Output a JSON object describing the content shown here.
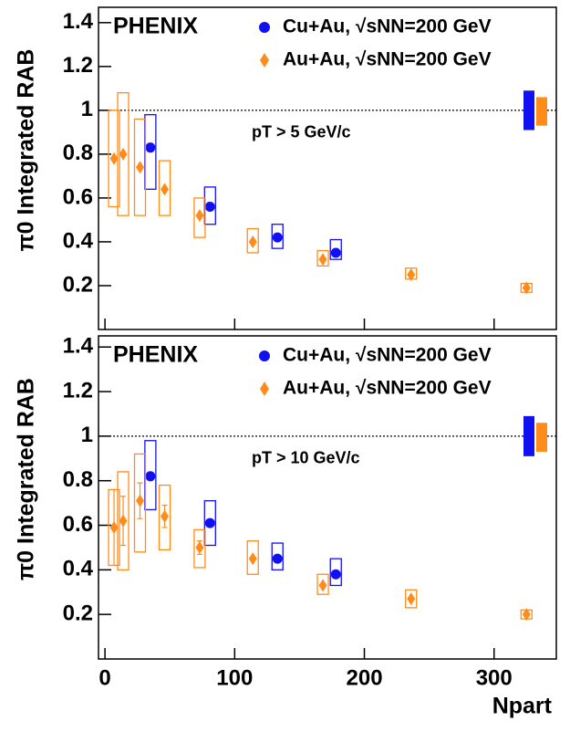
{
  "chart_data": [
    {
      "type": "scatter",
      "experiment": "PHENIX",
      "annotation": "pT > 5 GeV/c",
      "y_label": "π0 Integrated RAB",
      "xlim": [
        -5,
        348
      ],
      "xticks": [
        0,
        100,
        200,
        300
      ],
      "ylim": [
        0,
        1.47
      ],
      "yticks": [
        0.2,
        0.4,
        0.6,
        0.8,
        1,
        1.2,
        1.4
      ],
      "reference_line": 1,
      "series": [
        {
          "name": "Cu+Au, √sNN=200 GeV",
          "color": "#1010f0",
          "marker": "circle",
          "x": [
            35,
            81,
            133,
            178
          ],
          "values": [
            0.83,
            0.56,
            0.42,
            0.35
          ],
          "box_low": [
            0.64,
            0.48,
            0.37,
            0.32
          ],
          "box_high": [
            0.98,
            0.65,
            0.48,
            0.41
          ],
          "norm": [
            0.91,
            1.09
          ]
        },
        {
          "name": "Au+Au, √sNN=200 GeV",
          "color": "#ff8c1a",
          "marker": "diamond",
          "x": [
            7,
            14,
            27,
            46,
            73,
            114,
            168,
            236,
            325
          ],
          "values": [
            0.78,
            0.8,
            0.74,
            0.64,
            0.52,
            0.4,
            0.32,
            0.25,
            0.19
          ],
          "box_low": [
            0.56,
            0.52,
            0.52,
            0.52,
            0.42,
            0.35,
            0.29,
            0.23,
            0.17
          ],
          "box_high": [
            1.0,
            1.08,
            0.96,
            0.77,
            0.6,
            0.46,
            0.36,
            0.28,
            0.21
          ],
          "norm": [
            0.93,
            1.06
          ]
        }
      ]
    },
    {
      "type": "scatter",
      "experiment": "PHENIX",
      "annotation": "pT > 10 GeV/c",
      "y_label": "π0 Integrated RAB",
      "x_label": "Npart",
      "xlim": [
        -5,
        348
      ],
      "xticks": [
        0,
        100,
        200,
        300
      ],
      "ylim": [
        0,
        1.45
      ],
      "yticks": [
        0.2,
        0.4,
        0.6,
        0.8,
        1,
        1.2,
        1.4
      ],
      "reference_line": 1,
      "series": [
        {
          "name": "Cu+Au, √sNN=200 GeV",
          "color": "#1010f0",
          "marker": "circle",
          "x": [
            35,
            81,
            133,
            178
          ],
          "values": [
            0.82,
            0.61,
            0.45,
            0.38
          ],
          "box_low": [
            0.67,
            0.51,
            0.4,
            0.33
          ],
          "box_high": [
            0.98,
            0.71,
            0.52,
            0.45
          ],
          "norm": [
            0.91,
            1.09
          ]
        },
        {
          "name": "Au+Au, √sNN=200 GeV",
          "color": "#ff8c1a",
          "marker": "diamond",
          "x": [
            7,
            14,
            27,
            46,
            73,
            114,
            168,
            236,
            325
          ],
          "values": [
            0.59,
            0.62,
            0.71,
            0.64,
            0.5,
            0.45,
            0.33,
            0.27,
            0.2
          ],
          "errors": [
            0.17,
            0.11,
            0.08,
            0.05,
            0.03,
            null,
            null,
            null,
            null
          ],
          "box_low": [
            0.42,
            0.4,
            0.48,
            0.49,
            0.41,
            0.38,
            0.29,
            0.23,
            0.18
          ],
          "box_high": [
            0.76,
            0.84,
            0.92,
            0.78,
            0.58,
            0.53,
            0.38,
            0.31,
            0.22
          ],
          "norm": [
            0.93,
            1.06
          ]
        }
      ]
    }
  ]
}
